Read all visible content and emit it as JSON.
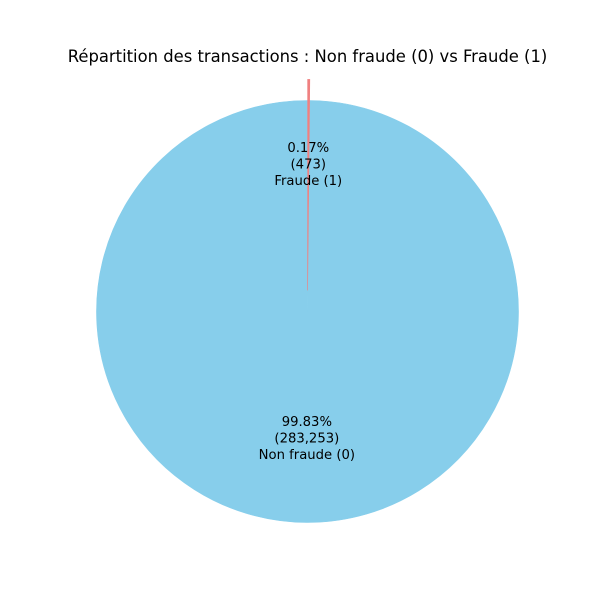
{
  "chart_data": {
    "type": "pie",
    "title": "Répartition des transactions : Non fraude (0) vs Fraude (1)",
    "start_angle_deg": 90,
    "direction": "counterclockwise",
    "slices": [
      {
        "label": "Non fraude (0)",
        "value": 283253,
        "value_text": "(283,253)",
        "percent_text": "99.83%",
        "color": "#87CEEB",
        "explode": 0
      },
      {
        "label": "Fraude (1)",
        "value": 473,
        "value_text": "(473)",
        "percent_text": "0.17%",
        "color": "#F08080",
        "explode": 0.1
      }
    ]
  }
}
